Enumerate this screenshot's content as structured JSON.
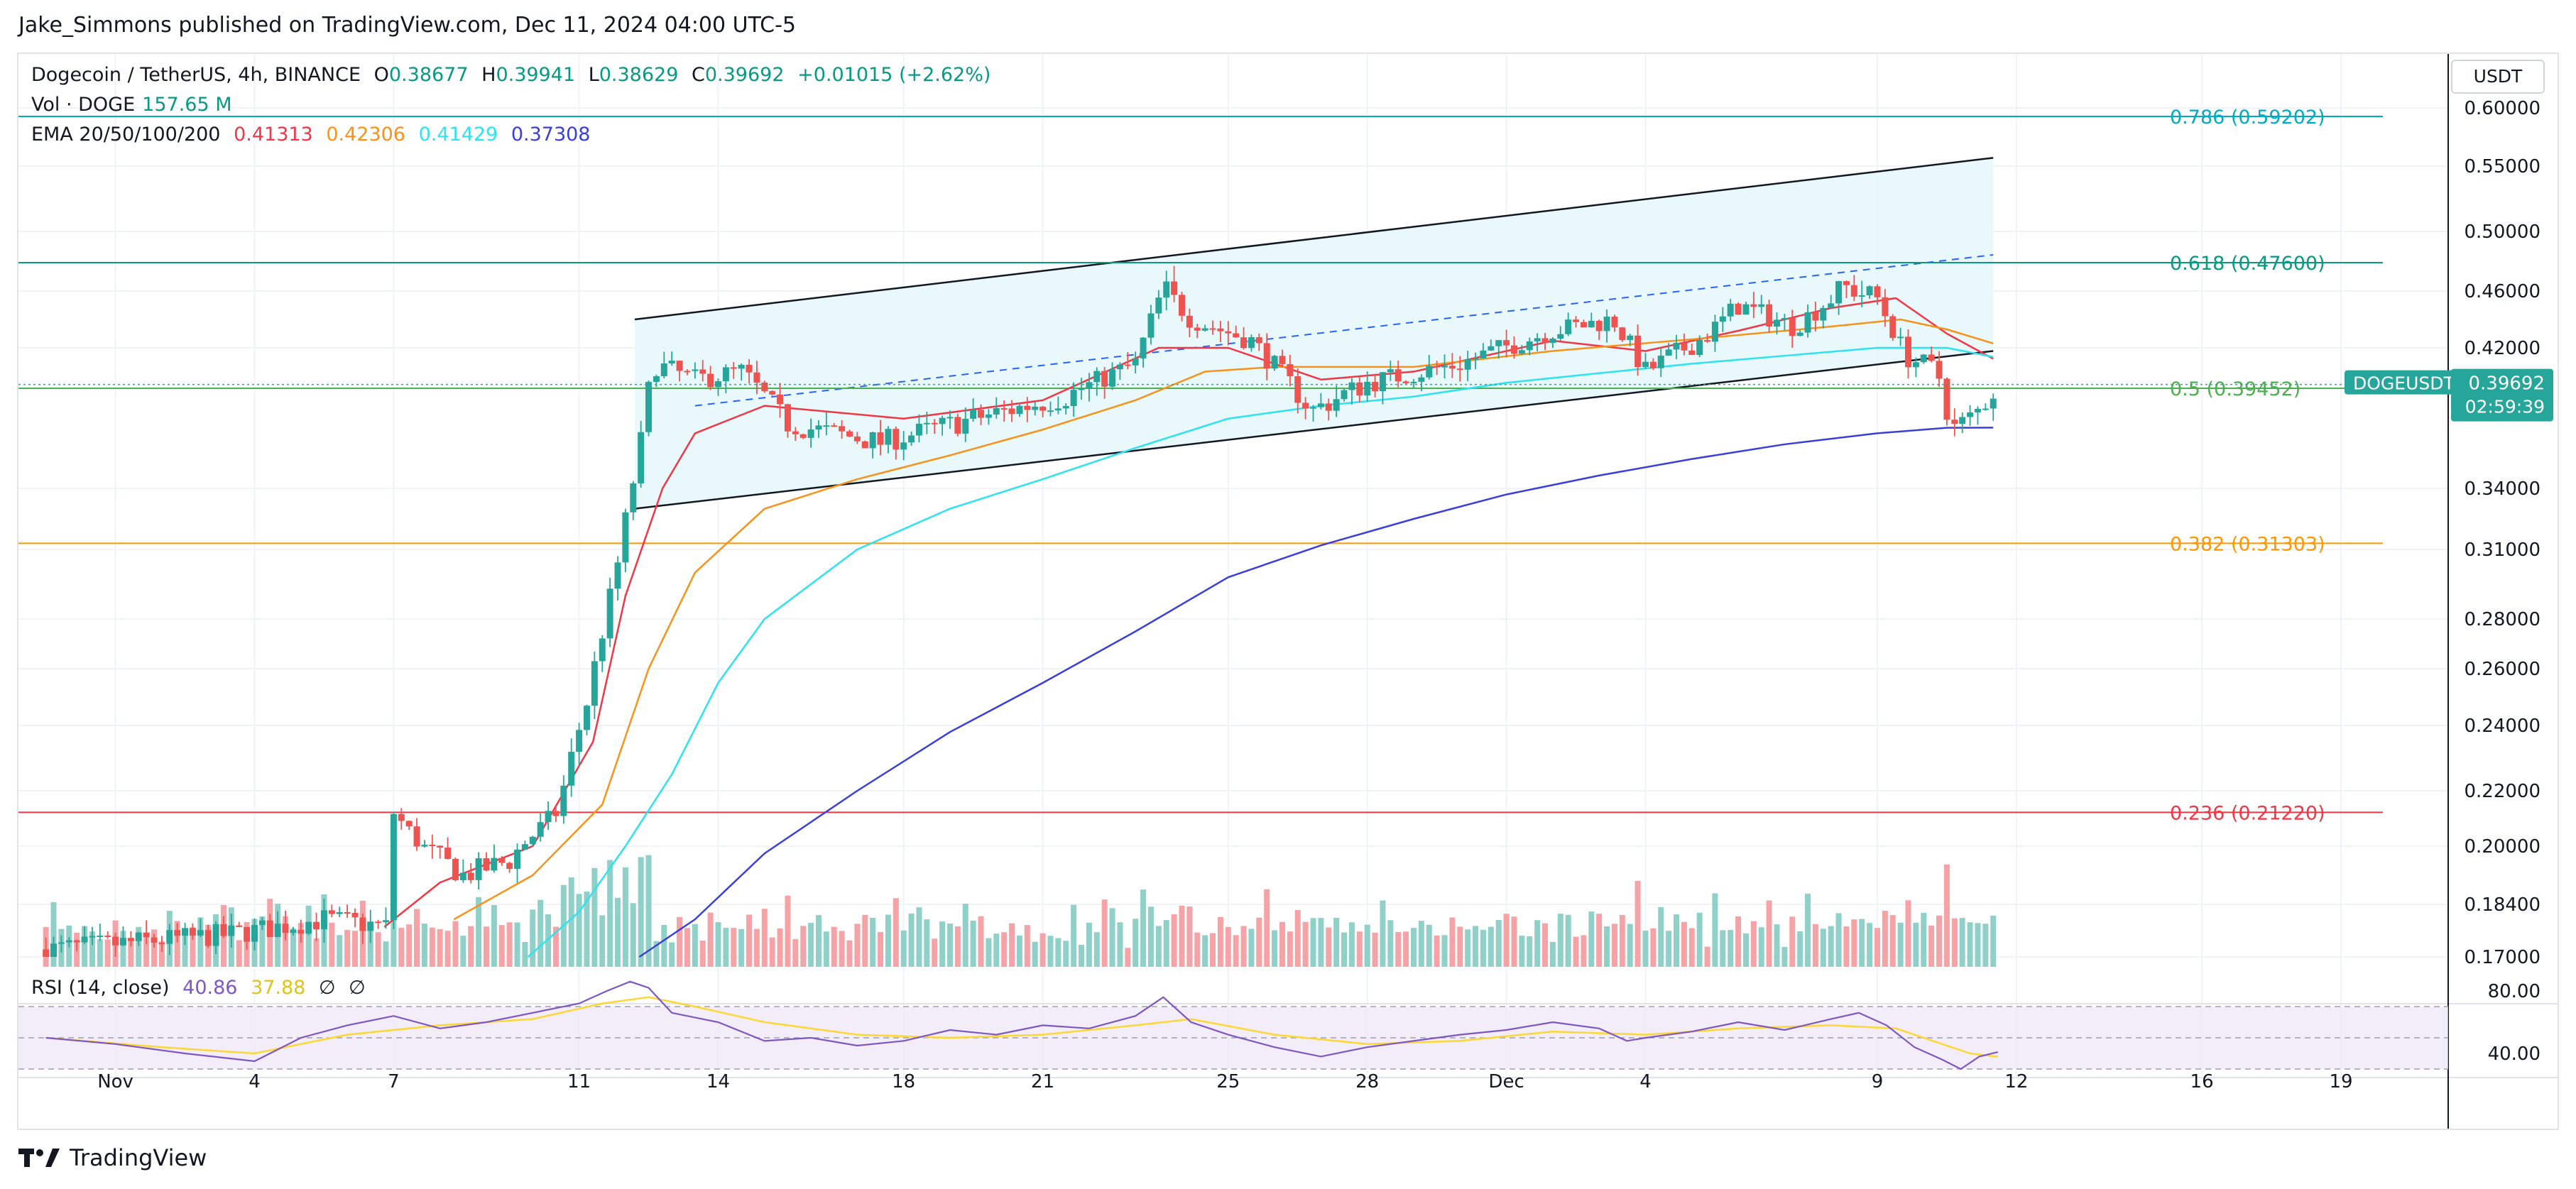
{
  "publisher_line": "Jake_Simmons published on TradingView.com, Dec 11, 2024 04:00 UTC-5",
  "footer_brand": "TradingView",
  "colors": {
    "up": "#26a69a",
    "down": "#ef5350",
    "vol_up": "#8fd0c8",
    "vol_down": "#f5a3a6",
    "ema20": "#f23645",
    "ema50": "#f7931a",
    "ema100": "#2de3f0",
    "ema200": "#3b3fd9",
    "fib786": "#00acc1",
    "fib618": "#089981",
    "fib05": "#4caf50",
    "fib382": "#ff9800",
    "fib236": "#f23645",
    "rsi": "#7e57c2",
    "rsi_ma": "#fdd835",
    "channel_fill": "#e6f7fb",
    "grid": "#f0f3fa"
  },
  "legend": {
    "symbol": "Dogecoin / TetherUS, 4h, BINANCE",
    "o_label": "O",
    "o": "0.38677",
    "h_label": "H",
    "h": "0.39941",
    "l_label": "L",
    "l": "0.38629",
    "c_label": "C",
    "c": "0.39692",
    "change": "+0.01015 (+2.62%)",
    "vol_label": "Vol · DOGE",
    "vol_value": "157.65 M",
    "ema_label": "EMA 20/50/100/200",
    "ema_values": [
      "0.41313",
      "0.42306",
      "0.41429",
      "0.37308"
    ]
  },
  "rsi_legend": {
    "label": "RSI (14, close)",
    "value": "40.86",
    "ma": "37.88",
    "na1": "∅",
    "na2": "∅"
  },
  "price_axis": {
    "unit": "USDT",
    "symbol_tag": "DOGEUSDT",
    "last_price": "0.39692",
    "countdown": "02:59:39"
  },
  "chart_data": {
    "type": "candlestick",
    "title": "Dogecoin / TetherUS, 4h, BINANCE",
    "price_ticks": [
      "0.60000",
      "0.55000",
      "0.50000",
      "0.46000",
      "0.42000",
      "0.34000",
      "0.31000",
      "0.28000",
      "0.26000",
      "0.24000",
      "0.22000",
      "0.20000",
      "0.18400",
      "0.17000"
    ],
    "rsi_ticks": [
      "80.00",
      "40.00"
    ],
    "x_ticks": [
      {
        "label": "Nov",
        "day": 0
      },
      {
        "label": "4",
        "day": 3
      },
      {
        "label": "7",
        "day": 6
      },
      {
        "label": "11",
        "day": 10
      },
      {
        "label": "14",
        "day": 13
      },
      {
        "label": "18",
        "day": 17
      },
      {
        "label": "21",
        "day": 20
      },
      {
        "label": "25",
        "day": 24
      },
      {
        "label": "28",
        "day": 27
      },
      {
        "label": "Dec",
        "day": 30
      },
      {
        "label": "4",
        "day": 33
      },
      {
        "label": "9",
        "day": 38
      },
      {
        "label": "12",
        "day": 41
      },
      {
        "label": "16",
        "day": 45
      },
      {
        "label": "19",
        "day": 48
      }
    ],
    "fib_levels": [
      {
        "label": "0.786 (0.59202)",
        "price": 0.59202,
        "color_key": "fib786"
      },
      {
        "label": "0.618 (0.47600)",
        "price": 0.476,
        "color_key": "fib618"
      },
      {
        "label": "0.5 (0.39452)",
        "price": 0.39452,
        "color_key": "fib05"
      },
      {
        "label": "0.382 (0.31303)",
        "price": 0.31303,
        "color_key": "fib382"
      },
      {
        "label": "0.236 (0.21220)",
        "price": 0.2122,
        "color_key": "fib236"
      }
    ],
    "last_price": 0.39692,
    "key_closes": [
      {
        "day": -1.5,
        "close": 0.172
      },
      {
        "day": 2.5,
        "close": 0.176
      },
      {
        "day": 4.5,
        "close": 0.18
      },
      {
        "day": 5.9,
        "close": 0.178
      },
      {
        "day": 6.0,
        "close": 0.212
      },
      {
        "day": 6.6,
        "close": 0.2
      },
      {
        "day": 7.5,
        "close": 0.192
      },
      {
        "day": 8.5,
        "close": 0.196
      },
      {
        "day": 9.5,
        "close": 0.212
      },
      {
        "day": 10.2,
        "close": 0.25
      },
      {
        "day": 10.8,
        "close": 0.3
      },
      {
        "day": 11.3,
        "close": 0.36
      },
      {
        "day": 11.6,
        "close": 0.41
      },
      {
        "day": 12.5,
        "close": 0.4
      },
      {
        "day": 13.5,
        "close": 0.405
      },
      {
        "day": 14.5,
        "close": 0.375
      },
      {
        "day": 16.5,
        "close": 0.365
      },
      {
        "day": 18.5,
        "close": 0.378
      },
      {
        "day": 20.5,
        "close": 0.39
      },
      {
        "day": 22.0,
        "close": 0.41
      },
      {
        "day": 22.6,
        "close": 0.462
      },
      {
        "day": 23.2,
        "close": 0.44
      },
      {
        "day": 24.5,
        "close": 0.425
      },
      {
        "day": 25.8,
        "close": 0.382
      },
      {
        "day": 27.0,
        "close": 0.398
      },
      {
        "day": 29.0,
        "close": 0.41
      },
      {
        "day": 31.0,
        "close": 0.432
      },
      {
        "day": 32.3,
        "close": 0.44
      },
      {
        "day": 33.0,
        "close": 0.405
      },
      {
        "day": 34.3,
        "close": 0.428
      },
      {
        "day": 35.0,
        "close": 0.45
      },
      {
        "day": 36.2,
        "close": 0.435
      },
      {
        "day": 37.3,
        "close": 0.462
      },
      {
        "day": 38.0,
        "close": 0.455
      },
      {
        "day": 38.6,
        "close": 0.415
      },
      {
        "day": 39.3,
        "close": 0.405
      },
      {
        "day": 39.6,
        "close": 0.372
      },
      {
        "day": 40.1,
        "close": 0.38
      },
      {
        "day": 40.6,
        "close": 0.396
      }
    ],
    "ema_series": [
      {
        "key": "ema20",
        "points": [
          [
            5.8,
            0.178
          ],
          [
            7,
            0.19
          ],
          [
            9,
            0.2
          ],
          [
            10.3,
            0.235
          ],
          [
            11,
            0.29
          ],
          [
            11.8,
            0.34
          ],
          [
            12.5,
            0.37
          ],
          [
            14,
            0.385
          ],
          [
            17,
            0.378
          ],
          [
            20,
            0.388
          ],
          [
            22.5,
            0.42
          ],
          [
            24,
            0.42
          ],
          [
            26,
            0.4
          ],
          [
            28,
            0.405
          ],
          [
            31,
            0.425
          ],
          [
            33,
            0.418
          ],
          [
            35,
            0.432
          ],
          [
            37,
            0.448
          ],
          [
            38.4,
            0.455
          ],
          [
            39.5,
            0.43
          ],
          [
            40.5,
            0.4131
          ]
        ]
      },
      {
        "key": "ema50",
        "points": [
          [
            7.3,
            0.18
          ],
          [
            9,
            0.192
          ],
          [
            10.5,
            0.215
          ],
          [
            11.5,
            0.26
          ],
          [
            12.5,
            0.3
          ],
          [
            14,
            0.33
          ],
          [
            16,
            0.345
          ],
          [
            18,
            0.358
          ],
          [
            20,
            0.372
          ],
          [
            22,
            0.388
          ],
          [
            23.5,
            0.405
          ],
          [
            25,
            0.408
          ],
          [
            28,
            0.408
          ],
          [
            31,
            0.418
          ],
          [
            34,
            0.426
          ],
          [
            37,
            0.435
          ],
          [
            38.5,
            0.44
          ],
          [
            39.5,
            0.433
          ],
          [
            40.5,
            0.4231
          ]
        ]
      },
      {
        "key": "ema100",
        "points": [
          [
            8.9,
            0.17
          ],
          [
            10,
            0.182
          ],
          [
            11,
            0.2
          ],
          [
            12,
            0.225
          ],
          [
            13,
            0.255
          ],
          [
            14,
            0.28
          ],
          [
            16,
            0.31
          ],
          [
            18,
            0.33
          ],
          [
            20,
            0.345
          ],
          [
            22,
            0.362
          ],
          [
            24,
            0.378
          ],
          [
            26,
            0.385
          ],
          [
            28,
            0.39
          ],
          [
            30,
            0.398
          ],
          [
            32,
            0.404
          ],
          [
            34,
            0.41
          ],
          [
            36,
            0.415
          ],
          [
            38,
            0.42
          ],
          [
            39.5,
            0.42
          ],
          [
            40.5,
            0.4143
          ]
        ]
      },
      {
        "key": "ema200",
        "points": [
          [
            11.3,
            0.17
          ],
          [
            12.5,
            0.18
          ],
          [
            14,
            0.198
          ],
          [
            16,
            0.22
          ],
          [
            18,
            0.238
          ],
          [
            20,
            0.255
          ],
          [
            22,
            0.275
          ],
          [
            24,
            0.298
          ],
          [
            26,
            0.312
          ],
          [
            28,
            0.325
          ],
          [
            30,
            0.337
          ],
          [
            32,
            0.347
          ],
          [
            34,
            0.356
          ],
          [
            36,
            0.364
          ],
          [
            38,
            0.37
          ],
          [
            39.5,
            0.373
          ],
          [
            40.5,
            0.3731
          ]
        ]
      }
    ],
    "rsi_guides": [
      30,
      50,
      70
    ],
    "rsi_series": [
      [
        -1.5,
        50
      ],
      [
        0,
        46
      ],
      [
        1.5,
        40
      ],
      [
        3,
        35
      ],
      [
        4,
        50
      ],
      [
        5,
        58
      ],
      [
        6,
        64
      ],
      [
        7,
        56
      ],
      [
        8,
        60
      ],
      [
        9,
        66
      ],
      [
        10,
        72
      ],
      [
        10.6,
        80
      ],
      [
        11.1,
        86
      ],
      [
        11.5,
        82
      ],
      [
        12,
        66
      ],
      [
        13,
        60
      ],
      [
        14,
        48
      ],
      [
        15,
        50
      ],
      [
        16,
        45
      ],
      [
        17,
        48
      ],
      [
        18,
        55
      ],
      [
        19,
        52
      ],
      [
        20,
        58
      ],
      [
        21,
        56
      ],
      [
        22,
        64
      ],
      [
        22.6,
        76
      ],
      [
        23.2,
        60
      ],
      [
        24,
        52
      ],
      [
        25,
        44
      ],
      [
        26,
        38
      ],
      [
        27,
        44
      ],
      [
        28,
        48
      ],
      [
        29,
        52
      ],
      [
        30,
        55
      ],
      [
        31,
        60
      ],
      [
        32,
        56
      ],
      [
        32.6,
        48
      ],
      [
        33,
        50
      ],
      [
        34,
        54
      ],
      [
        35,
        60
      ],
      [
        36,
        55
      ],
      [
        37,
        62
      ],
      [
        37.6,
        66
      ],
      [
        38.2,
        58
      ],
      [
        38.8,
        44
      ],
      [
        39.4,
        36
      ],
      [
        39.8,
        30
      ],
      [
        40.2,
        38
      ],
      [
        40.6,
        40.86
      ]
    ],
    "rsi_ma_series": [
      [
        -1.5,
        50
      ],
      [
        1,
        44
      ],
      [
        3,
        40
      ],
      [
        5,
        52
      ],
      [
        7,
        58
      ],
      [
        9,
        62
      ],
      [
        10.5,
        72
      ],
      [
        11.5,
        76
      ],
      [
        12.5,
        70
      ],
      [
        14,
        60
      ],
      [
        16,
        52
      ],
      [
        18,
        50
      ],
      [
        20,
        52
      ],
      [
        22,
        58
      ],
      [
        23.2,
        62
      ],
      [
        25,
        52
      ],
      [
        27,
        46
      ],
      [
        29,
        48
      ],
      [
        31,
        54
      ],
      [
        33,
        52
      ],
      [
        35,
        56
      ],
      [
        37,
        58
      ],
      [
        38.4,
        56
      ],
      [
        39.2,
        48
      ],
      [
        40,
        40
      ],
      [
        40.6,
        37.88
      ]
    ],
    "channel": {
      "upper": [
        [
          11.2,
          0.44
        ],
        [
          40.5,
          0.557
        ]
      ],
      "lower": [
        [
          11.2,
          0.33
        ],
        [
          40.5,
          0.418
        ]
      ],
      "mid_dashed": [
        [
          12.5,
          0.385
        ],
        [
          40.5,
          0.482
        ]
      ],
      "fill_end_day": 40.5
    }
  }
}
